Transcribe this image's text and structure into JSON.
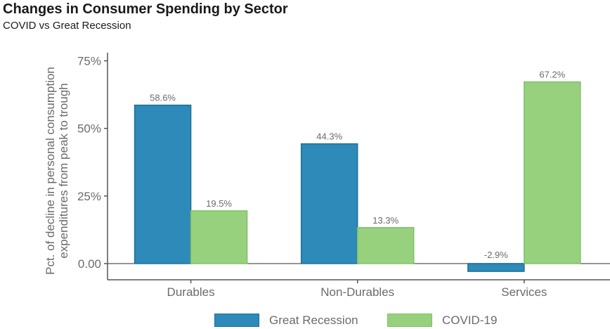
{
  "header": {
    "title": "Changes in Consumer Spending by Sector",
    "subtitle": "COVID vs Great Recession"
  },
  "chart_data": {
    "type": "bar",
    "title": "Changes in Consumer Spending by Sector",
    "subtitle": "COVID vs Great Recession",
    "xlabel": "",
    "ylabel_lines": [
      "Pct. of decline in personal consumption",
      "expenditures from peak to trough"
    ],
    "categories": [
      "Durables",
      "Non-Durables",
      "Services"
    ],
    "series": [
      {
        "name": "Great Recession",
        "values": [
          58.6,
          44.3,
          -2.9
        ],
        "color": "#2e8ab8",
        "border": "#1d6f99"
      },
      {
        "name": "COVID-19",
        "values": [
          19.5,
          13.3,
          67.2
        ],
        "color": "#98d17e",
        "border": "#7fbf67"
      }
    ],
    "data_labels": [
      [
        "58.6%",
        "44.3%",
        "-2.9%"
      ],
      [
        "19.5%",
        "13.3%",
        "67.2%"
      ]
    ],
    "ylim": [
      -6,
      78
    ],
    "yticks": [
      0,
      25,
      50,
      75
    ],
    "ytick_labels": [
      "0.00",
      "25%",
      "50%",
      "75%"
    ],
    "grid": false,
    "legend_position": "bottom"
  },
  "colors": {
    "axis": "#555555",
    "tick_text": "#6b6b6b",
    "label_text": "#6b6b6b"
  }
}
